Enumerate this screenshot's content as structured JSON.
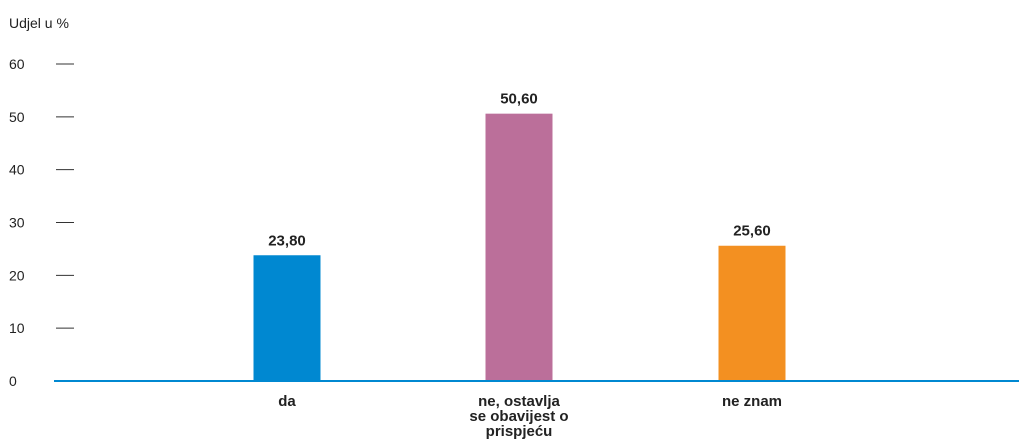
{
  "chart_data": {
    "type": "bar",
    "ylabel": "Udjel u %",
    "xlabel": "",
    "title": "",
    "categories": [
      "da",
      "ne, ostavlja se obavijest o prispjeću",
      "ne znam"
    ],
    "category_label_lines": [
      [
        "da"
      ],
      [
        "ne, ostavlja",
        "se obavijest o",
        "prispjeću"
      ],
      [
        "ne znam"
      ]
    ],
    "values": [
      23.8,
      50.6,
      25.6
    ],
    "value_labels": [
      "23,80",
      "50,60",
      "25,60"
    ],
    "colors": [
      "#0088d1",
      "#bb6f9a",
      "#f39021"
    ],
    "ylim": [
      0,
      60
    ],
    "yticks": [
      0,
      10,
      20,
      30,
      40,
      50,
      60
    ],
    "ytick_labels": [
      "0",
      "10",
      "20",
      "30",
      "40",
      "50",
      "60"
    ],
    "axis_color": "#0088d1",
    "grid": false,
    "legend": "none"
  }
}
